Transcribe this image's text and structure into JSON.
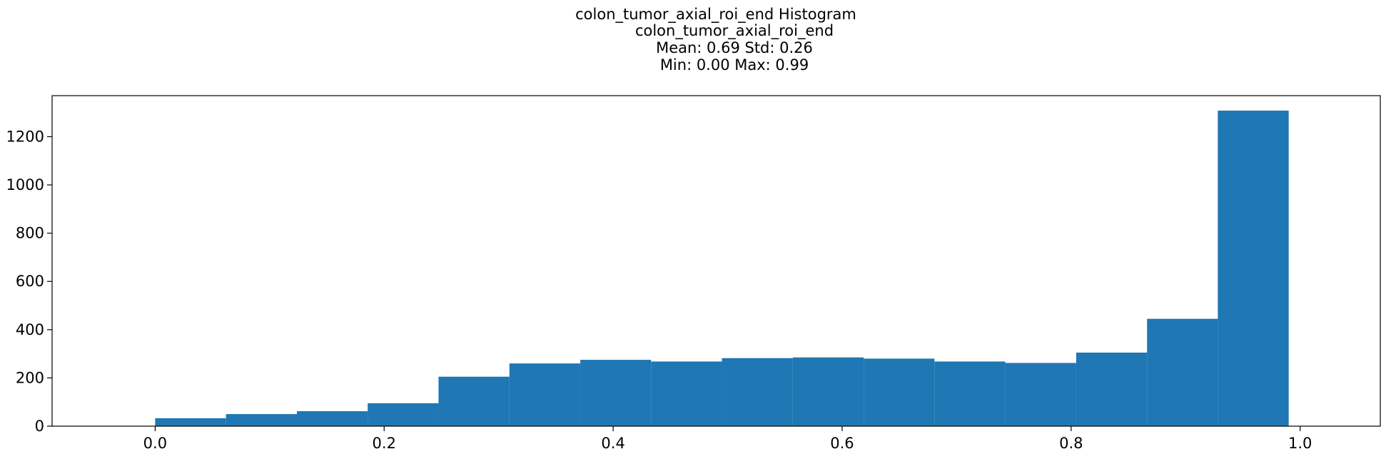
{
  "chart_data": {
    "type": "bar",
    "title_lines": [
      "colon_tumor_axial_roi_end Histogram",
      "colon_tumor_axial_roi_end",
      "Mean: 0.69 Std: 0.26",
      "Min: 0.00 Max: 0.99"
    ],
    "xlabel": "",
    "ylabel": "",
    "xlim": [
      -0.09,
      1.07
    ],
    "ylim": [
      0,
      1370
    ],
    "x_ticks": [
      0.0,
      0.2,
      0.4,
      0.6,
      0.8,
      1.0
    ],
    "x_tick_labels": [
      "0.0",
      "0.2",
      "0.4",
      "0.6",
      "0.8",
      "1.0"
    ],
    "y_ticks": [
      0,
      200,
      400,
      600,
      800,
      1000,
      1200
    ],
    "y_tick_labels": [
      "0",
      "200",
      "400",
      "600",
      "800",
      "1000",
      "1200"
    ],
    "bin_edges": [
      0.0,
      0.0619,
      0.1238,
      0.1856,
      0.2475,
      0.3094,
      0.3713,
      0.4331,
      0.495,
      0.5569,
      0.6188,
      0.6806,
      0.7425,
      0.8044,
      0.8663,
      0.9281,
      0.99
    ],
    "values": [
      33,
      50,
      62,
      95,
      205,
      260,
      275,
      268,
      282,
      285,
      280,
      268,
      262,
      305,
      445,
      1308
    ],
    "bar_color": "#1f77b4",
    "grid": false,
    "legend": "none"
  }
}
